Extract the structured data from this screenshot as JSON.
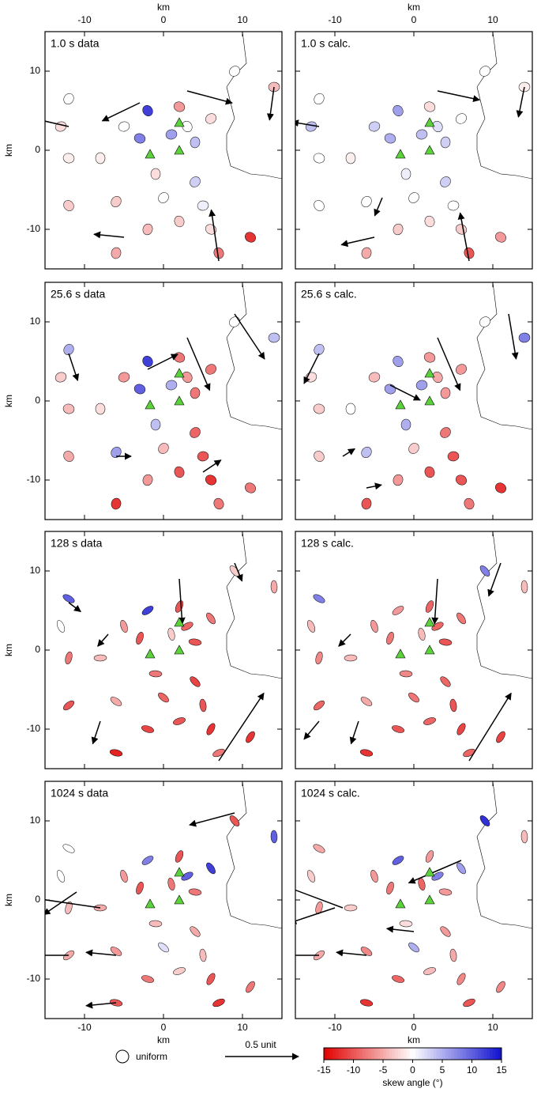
{
  "axis_label": "km",
  "stations": {
    "x": [
      -12,
      -13,
      -12,
      -12,
      -8,
      -6,
      -5,
      -3,
      -2,
      -1,
      0,
      1,
      2,
      3,
      4,
      4,
      5,
      6,
      7,
      -6,
      9,
      14,
      11,
      2,
      -2,
      6
    ],
    "y": [
      6.5,
      3,
      -1,
      -7,
      -1,
      -6.5,
      3,
      1.5,
      5,
      -3,
      -6,
      2,
      5.5,
      3,
      1,
      -4,
      -7,
      -10,
      -13,
      -13,
      10,
      8,
      -11,
      -9,
      -10,
      4
    ]
  },
  "volcanoes": {
    "x": [
      -1.7,
      2,
      2
    ],
    "y": [
      -0.5,
      3.5,
      0
    ]
  },
  "legend": {
    "uniform_label": "uniform",
    "arrow_label": "0.5 unit"
  },
  "colorbar": {
    "clim": [
      -15,
      15
    ],
    "ticks": [
      -15,
      -10,
      -5,
      0,
      5,
      10,
      15
    ],
    "label": "skew angle (°)",
    "colors": [
      "#e00000",
      "#ffffff",
      "#1010d0"
    ]
  },
  "chart_data": [
    {
      "type": "ellipse-map",
      "title": "1.0 s data",
      "xlim": [
        -15,
        15
      ],
      "ylim": [
        -15,
        15
      ],
      "xticks": [
        -10,
        0,
        10
      ],
      "yticks": [
        -10,
        0,
        10
      ],
      "values": [
        0,
        -2,
        -1,
        -3,
        -1,
        -3,
        0,
        8,
        12,
        -2,
        0,
        6,
        -6,
        0,
        4,
        3,
        1,
        -2,
        -8,
        -5,
        0,
        -4,
        -12,
        -3,
        -4,
        -2
      ],
      "arrows": {
        "x": [
          -12,
          -5,
          3,
          7,
          14,
          -3
        ],
        "y": [
          3,
          -11,
          7.5,
          -14,
          8,
          6
        ],
        "u": [
          -0.22,
          -0.2,
          0.3,
          -0.05,
          -0.03,
          -0.25
        ],
        "v": [
          0.05,
          0.02,
          -0.08,
          0.34,
          -0.22,
          -0.12
        ]
      }
    },
    {
      "type": "ellipse-map",
      "title": "1.0 s calc.",
      "xlim": [
        -15,
        15
      ],
      "ylim": [
        -15,
        15
      ],
      "xticks": [
        -10,
        0,
        10
      ],
      "yticks": [
        -10,
        0,
        10
      ],
      "values": [
        0,
        4,
        0,
        0,
        -1,
        0,
        3,
        5,
        6,
        1,
        0,
        4,
        -2,
        2,
        3,
        3,
        0,
        -3,
        -10,
        -5,
        0,
        -1,
        -6,
        -2,
        -3,
        0
      ],
      "arrows": {
        "x": [
          -12,
          -5,
          3,
          7,
          14,
          -4
        ],
        "y": [
          3,
          -11,
          7.5,
          -14,
          8,
          -6
        ],
        "u": [
          -0.18,
          -0.22,
          0.28,
          -0.06,
          -0.04,
          -0.05
        ],
        "v": [
          0.03,
          -0.05,
          -0.06,
          0.32,
          -0.2,
          -0.12
        ]
      }
    },
    {
      "type": "ellipse-map",
      "title": "25.6 s data",
      "xlim": [
        -15,
        15
      ],
      "ylim": [
        -15,
        15
      ],
      "xticks": [
        -10,
        0,
        10
      ],
      "yticks": [
        -10,
        0,
        10
      ],
      "values": [
        5,
        -3,
        -4,
        -5,
        -2,
        6,
        -6,
        10,
        12,
        4,
        -4,
        5,
        -8,
        -6,
        -8,
        -9,
        -10,
        -12,
        -8,
        -12,
        0,
        4,
        -8,
        -10,
        -6,
        -8
      ],
      "arrows": {
        "x": [
          -12,
          9,
          -2,
          3,
          -6,
          5
        ],
        "y": [
          6,
          11,
          4,
          8,
          -7,
          -9
        ],
        "u": [
          0.06,
          0.2,
          0.2,
          0.15,
          0.1,
          0.12
        ],
        "v": [
          -0.18,
          -0.3,
          0.1,
          -0.35,
          0,
          0.08
        ]
      }
    },
    {
      "type": "ellipse-map",
      "title": "25.6 s calc.",
      "xlim": [
        -15,
        15
      ],
      "ylim": [
        -15,
        15
      ],
      "xticks": [
        -10,
        0,
        10
      ],
      "yticks": [
        -10,
        0,
        10
      ],
      "values": [
        4,
        -2,
        -3,
        -3,
        0,
        4,
        -4,
        6,
        6,
        5,
        -3,
        6,
        -6,
        -5,
        -6,
        -8,
        -10,
        -10,
        -8,
        -10,
        0,
        8,
        -12,
        -10,
        -6,
        -6
      ],
      "arrows": {
        "x": [
          -12,
          12,
          -3,
          3,
          -9,
          -6
        ],
        "y": [
          6,
          11,
          2,
          8,
          -7,
          -11
        ],
        "u": [
          -0.1,
          0.05,
          0.2,
          0.15,
          0.08,
          0.1
        ],
        "v": [
          -0.2,
          -0.3,
          -0.1,
          -0.35,
          0.05,
          0.02
        ]
      }
    },
    {
      "type": "ellipse-map",
      "title": "128 s data",
      "xlim": [
        -15,
        15
      ],
      "ylim": [
        -15,
        15
      ],
      "xticks": [
        -10,
        0,
        10
      ],
      "yticks": [
        -10,
        0,
        10
      ],
      "values": [
        10,
        0,
        -8,
        -10,
        -4,
        -5,
        -6,
        -10,
        12,
        -8,
        -9,
        -3,
        -10,
        -9,
        -10,
        -11,
        -10,
        -12,
        -8,
        -13,
        -3,
        -5,
        -12,
        -10,
        -11,
        -8
      ],
      "arrows": {
        "x": [
          -12,
          9,
          -7,
          -8,
          2,
          7
        ],
        "y": [
          6,
          11,
          2,
          -9,
          9,
          -14
        ],
        "u": [
          0.08,
          0.05,
          -0.07,
          -0.05,
          0.02,
          0.3
        ],
        "v": [
          -0.06,
          -0.12,
          -0.08,
          -0.15,
          -0.3,
          0.45
        ]
      }
    },
    {
      "type": "ellipse-map",
      "title": "128 s calc.",
      "xlim": [
        -15,
        15
      ],
      "ylim": [
        -15,
        15
      ],
      "xticks": [
        -10,
        0,
        10
      ],
      "yticks": [
        -10,
        0,
        10
      ],
      "values": [
        8,
        -4,
        -7,
        -9,
        -4,
        -5,
        -6,
        -8,
        -6,
        -7,
        -8,
        -4,
        -9,
        -9,
        -10,
        -9,
        -10,
        -11,
        -9,
        -12,
        8,
        -4,
        -11,
        -9,
        -10,
        -8
      ],
      "arrows": {
        "x": [
          -12,
          11,
          -8,
          -7,
          3,
          7
        ],
        "y": [
          -9,
          11,
          2,
          -9,
          9,
          -14
        ],
        "u": [
          -0.1,
          -0.08,
          -0.08,
          -0.05,
          -0.02,
          0.28
        ],
        "v": [
          -0.12,
          -0.22,
          -0.08,
          -0.15,
          -0.3,
          0.45
        ]
      }
    },
    {
      "type": "ellipse-map",
      "title": "1024 s data",
      "xlim": [
        -15,
        15
      ],
      "ylim": [
        -15,
        15
      ],
      "xticks": [
        -10,
        0,
        10
      ],
      "yticks": [
        -10,
        0,
        10
      ],
      "values": [
        0,
        0,
        -4,
        -5,
        -5,
        -6,
        -6,
        -10,
        8,
        -4,
        2,
        -8,
        -10,
        10,
        -8,
        -5,
        -4,
        -10,
        -12,
        -10,
        -10,
        10,
        -8,
        -3,
        -8,
        12
      ],
      "arrows": {
        "x": [
          9,
          -8,
          -11,
          -6,
          -12,
          -6
        ],
        "y": [
          11,
          -1,
          1,
          -7,
          -7,
          -13
        ],
        "u": [
          -0.3,
          -0.55,
          -0.22,
          -0.2,
          -0.3,
          -0.2
        ],
        "v": [
          -0.08,
          0.08,
          -0.15,
          0.02,
          0,
          -0.02
        ]
      }
    },
    {
      "type": "ellipse-map",
      "title": "1024 s calc.",
      "xlim": [
        -15,
        15
      ],
      "ylim": [
        -15,
        15
      ],
      "xticks": [
        -10,
        0,
        10
      ],
      "yticks": [
        -10,
        0,
        10
      ],
      "values": [
        -5,
        -3,
        -6,
        -5,
        -3,
        -7,
        -6,
        -8,
        10,
        -2,
        5,
        -9,
        -6,
        8,
        -6,
        -6,
        -5,
        -7,
        -10,
        -12,
        13,
        -4,
        -7,
        -4,
        -9,
        6
      ],
      "arrows": {
        "x": [
          6,
          -9,
          -10,
          -6,
          -12,
          0
        ],
        "y": [
          5,
          -1,
          -1,
          -7,
          -7,
          -4
        ],
        "u": [
          -0.35,
          -0.4,
          -0.3,
          -0.2,
          -0.3,
          -0.18
        ],
        "v": [
          -0.15,
          0.15,
          -0.1,
          0.02,
          0,
          0.02
        ]
      }
    }
  ]
}
